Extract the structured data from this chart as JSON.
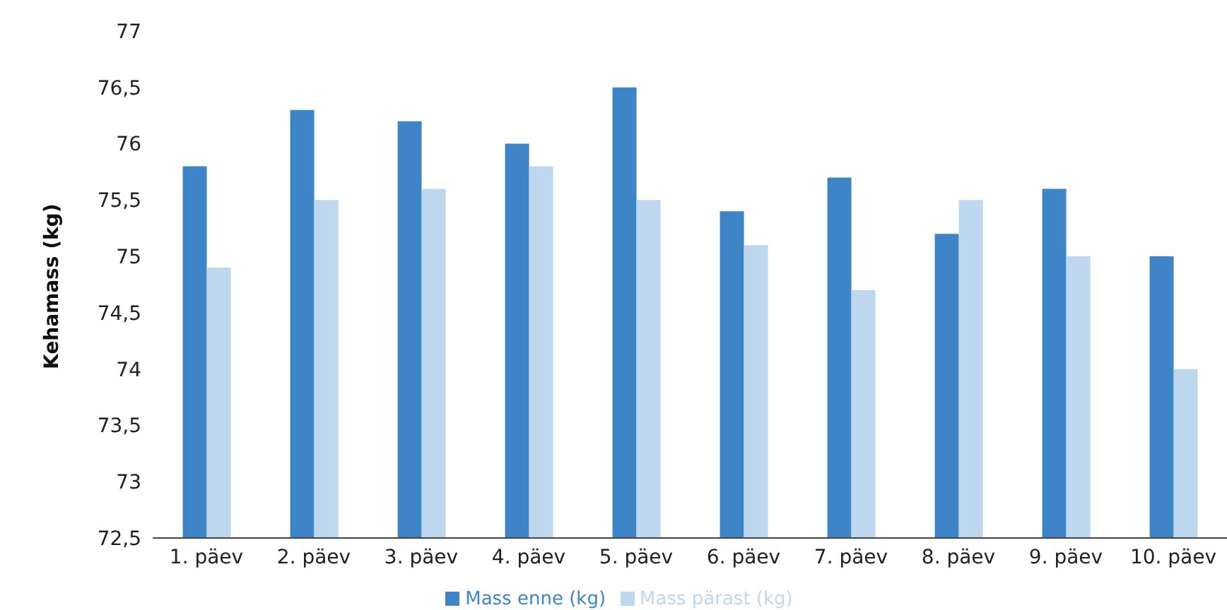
{
  "chart_data": {
    "type": "bar",
    "ylabel": "Kehamass (kg)",
    "categories": [
      "1. päev",
      "2. päev",
      "3. päev",
      "4. päev",
      "5. päev",
      "6. päev",
      "7. päev",
      "8. päev",
      "9. päev",
      "10. päev"
    ],
    "series": [
      {
        "name": "Mass enne (kg)",
        "color": "#3d85c6",
        "values": [
          75.8,
          76.3,
          76.2,
          76.0,
          76.5,
          75.4,
          75.7,
          75.2,
          75.6,
          75.0
        ]
      },
      {
        "name": "Mass pärast (kg)",
        "color": "#bdd7ee",
        "values": [
          74.9,
          75.5,
          75.6,
          75.8,
          75.5,
          75.1,
          74.7,
          75.5,
          75.0,
          74.0
        ]
      }
    ],
    "ylim": [
      72.5,
      77
    ],
    "yticks": [
      {
        "value": 72.5,
        "label": "72,5"
      },
      73,
      {
        "value": 73.5,
        "label": "73,5"
      },
      74,
      {
        "value": 74.5,
        "label": "74,5"
      },
      75,
      {
        "value": 75.5,
        "label": "75,5"
      },
      76,
      {
        "value": 76.5,
        "label": "76,5"
      },
      77
    ],
    "grid": false,
    "legend": "bottom"
  }
}
